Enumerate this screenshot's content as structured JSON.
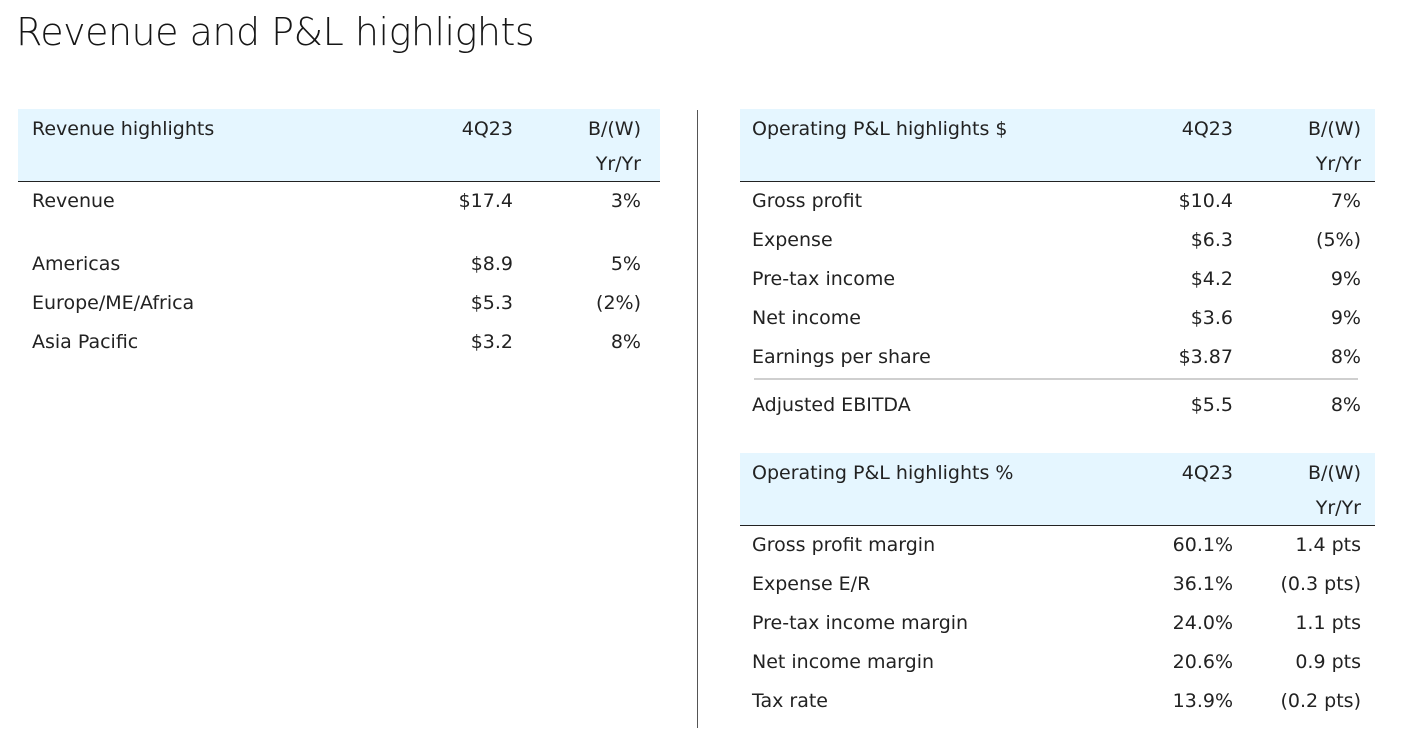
{
  "page": {
    "title": "Revenue and P&L highlights"
  },
  "revenue_table": {
    "header": {
      "label": "Revenue highlights",
      "period": "4Q23",
      "change_line1": "B/(W)",
      "change_line2": "Yr/Yr"
    },
    "rows": [
      {
        "label": "Revenue",
        "value": "$17.4",
        "change": "3%"
      },
      {
        "label": "Americas",
        "value": "$8.9",
        "change": "5%"
      },
      {
        "label": "Europe/ME/Africa",
        "value": "$5.3",
        "change": "(2%)"
      },
      {
        "label": "Asia Pacific",
        "value": "$3.2",
        "change": "8%"
      }
    ]
  },
  "pl_dollar_table": {
    "header": {
      "label": "Operating P&L highlights $",
      "period": "4Q23",
      "change_line1": "B/(W)",
      "change_line2": "Yr/Yr"
    },
    "rows": [
      {
        "label": "Gross profit",
        "value": "$10.4",
        "change": "7%"
      },
      {
        "label": "Expense",
        "value": "$6.3",
        "change": "(5%)"
      },
      {
        "label": "Pre-tax income",
        "value": "$4.2",
        "change": "9%"
      },
      {
        "label": "Net income",
        "value": "$3.6",
        "change": "9%"
      },
      {
        "label": "Earnings per share",
        "value": "$3.87",
        "change": "8%"
      },
      {
        "label": "Adjusted EBITDA",
        "value": "$5.5",
        "change": "8%"
      }
    ]
  },
  "pl_percent_table": {
    "header": {
      "label": "Operating P&L highlights %",
      "period": "4Q23",
      "change_line1": "B/(W)",
      "change_line2": "Yr/Yr"
    },
    "rows": [
      {
        "label": "Gross profit margin",
        "value": "60.1%",
        "change": "1.4 pts"
      },
      {
        "label": "Expense E/R",
        "value": "36.1%",
        "change": "(0.3 pts)"
      },
      {
        "label": "Pre-tax income margin",
        "value": "24.0%",
        "change": "1.1 pts"
      },
      {
        "label": "Net income margin",
        "value": "20.6%",
        "change": "0.9 pts"
      },
      {
        "label": "Tax rate",
        "value": "13.9%",
        "change": "(0.2 pts)"
      }
    ]
  },
  "colors": {
    "header_bg": "#e5f6ff",
    "text": "#222222",
    "rule": "#222222",
    "divider": "#555555"
  }
}
